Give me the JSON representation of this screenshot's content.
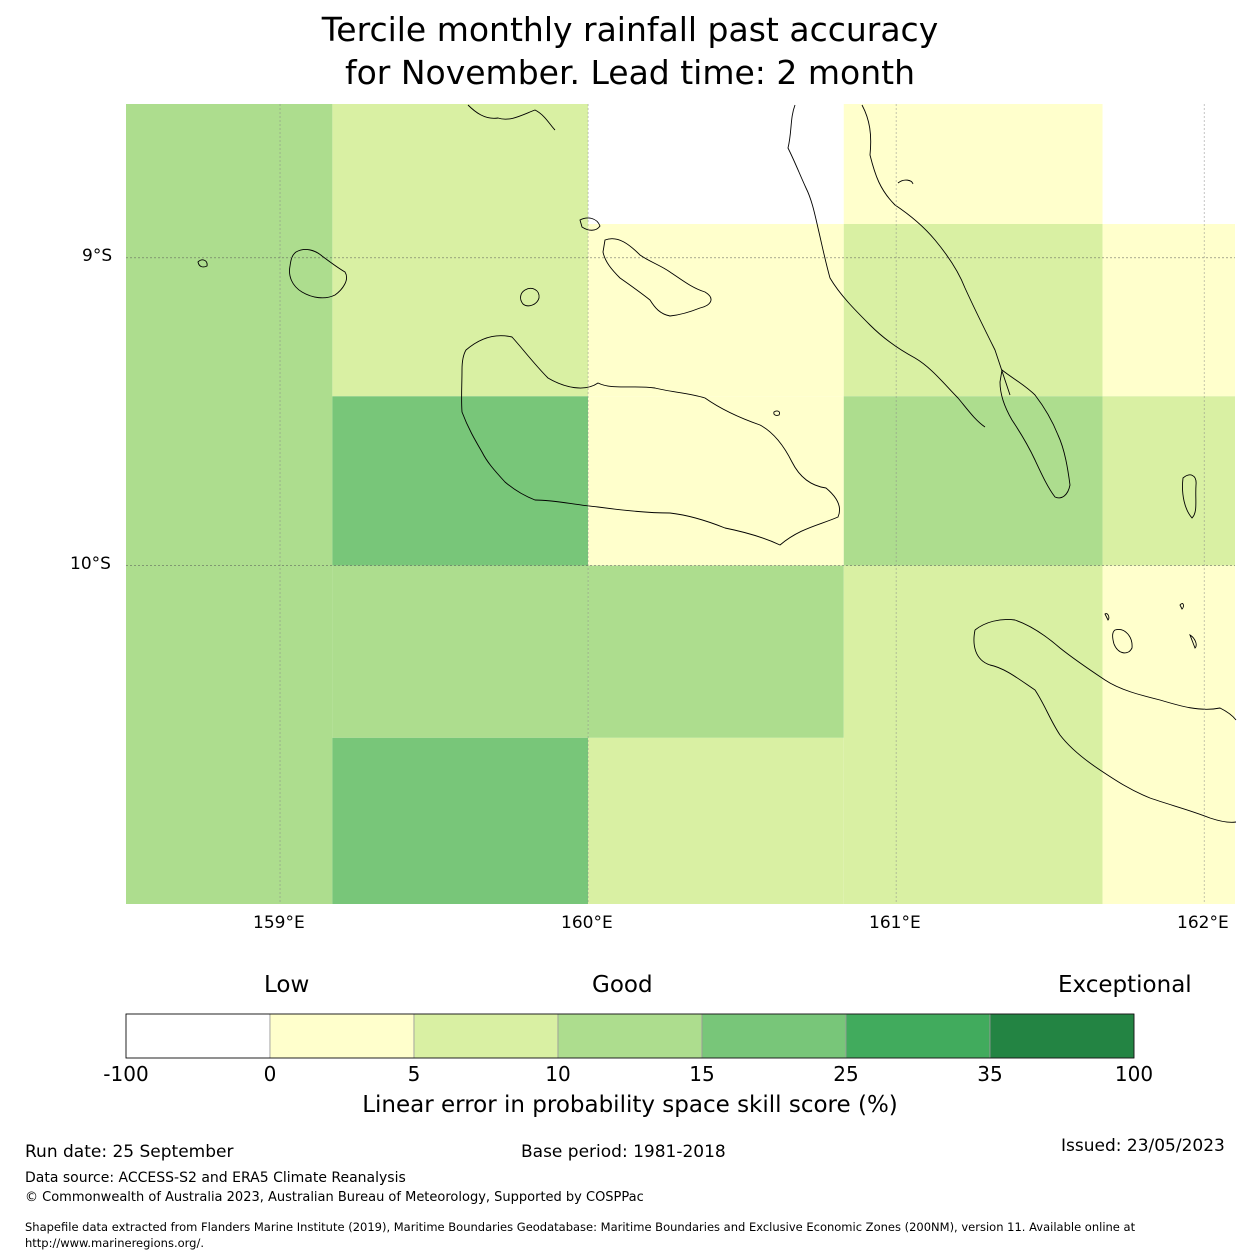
{
  "title": {
    "line1": "Tercile monthly rainfall past accuracy",
    "line2": "for November. Lead time: 2 month"
  },
  "map": {
    "lat_labels": [
      "9°S",
      "10°S"
    ],
    "lon_labels": [
      "159°E",
      "160°E",
      "161°E",
      "162°E"
    ],
    "lon_range": [
      158.5,
      162.1
    ],
    "lat_range": [
      -8.5,
      -11.1
    ],
    "cells": [
      {
        "lon": [
          158.5,
          159.17
        ],
        "lat": [
          -8.5,
          -11.1
        ],
        "score_band": "10-15"
      },
      {
        "lon": [
          159.17,
          160.0
        ],
        "lat": [
          -8.5,
          -9.45
        ],
        "score_band": "5-10"
      },
      {
        "lon": [
          159.17,
          160.0
        ],
        "lat": [
          -9.45,
          -10.0
        ],
        "score_band": "15-25"
      },
      {
        "lon": [
          159.17,
          160.0
        ],
        "lat": [
          -10.0,
          -10.56
        ],
        "score_band": "10-15"
      },
      {
        "lon": [
          159.17,
          160.0
        ],
        "lat": [
          -10.56,
          -11.1
        ],
        "score_band": "15-25"
      },
      {
        "lon": [
          160.0,
          160.83
        ],
        "lat": [
          -8.89,
          -9.45
        ],
        "score_band": "0-5"
      },
      {
        "lon": [
          160.0,
          160.83
        ],
        "lat": [
          -9.45,
          -10.0
        ],
        "score_band": "0-5"
      },
      {
        "lon": [
          160.0,
          160.83
        ],
        "lat": [
          -10.0,
          -10.56
        ],
        "score_band": "10-15"
      },
      {
        "lon": [
          160.0,
          160.83
        ],
        "lat": [
          -10.56,
          -11.1
        ],
        "score_band": "5-10"
      },
      {
        "lon": [
          160.83,
          161.67
        ],
        "lat": [
          -8.5,
          -8.89
        ],
        "score_band": "0-5"
      },
      {
        "lon": [
          160.83,
          161.67
        ],
        "lat": [
          -8.89,
          -9.45
        ],
        "score_band": "5-10"
      },
      {
        "lon": [
          160.83,
          161.67
        ],
        "lat": [
          -9.45,
          -10.0
        ],
        "score_band": "10-15"
      },
      {
        "lon": [
          160.83,
          161.67
        ],
        "lat": [
          -10.0,
          -11.1
        ],
        "score_band": "5-10"
      },
      {
        "lon": [
          161.67,
          162.1
        ],
        "lat": [
          -8.89,
          -9.45
        ],
        "score_band": "0-5"
      },
      {
        "lon": [
          161.67,
          162.1
        ],
        "lat": [
          -9.45,
          -10.0
        ],
        "score_band": "5-10"
      },
      {
        "lon": [
          161.67,
          162.1
        ],
        "lat": [
          -10.0,
          -11.1
        ],
        "score_band": "0-5"
      }
    ]
  },
  "colorbar": {
    "head_low": "Low",
    "head_good": "Good",
    "head_exceptional": "Exceptional",
    "ticks": [
      "-100",
      "0",
      "5",
      "10",
      "15",
      "25",
      "35",
      "100"
    ],
    "bands": [
      {
        "band": "-100-0",
        "color": "#ffffff"
      },
      {
        "band": "0-5",
        "color": "#ffffcc"
      },
      {
        "band": "5-10",
        "color": "#d9f0a3"
      },
      {
        "band": "10-15",
        "color": "#addd8e"
      },
      {
        "band": "15-25",
        "color": "#78c679"
      },
      {
        "band": "25-35",
        "color": "#41ab5d"
      },
      {
        "band": "35-100",
        "color": "#238443"
      }
    ],
    "title": "Linear error in probability space skill score (%)"
  },
  "footer": {
    "run_date": "Run date: 25 September",
    "base_period": "Base period: 1981-2018",
    "issued": "Issued: 23/05/2023",
    "data_source": "Data source: ACCESS-S2 and ERA5 Climate Reanalysis",
    "copyright": "© Commonwealth of Australia 2023, Australian Bureau of Meteorology, Supported by COSPPac",
    "shapefile_line1": "Shapefile data extracted from Flanders Marine Institute (2019), Maritime Boundaries Geodatabase: Maritime Boundaries and Exclusive Economic Zones (200NM), version 11. Available online at",
    "shapefile_line2": "http://www.marineregions.org/."
  }
}
